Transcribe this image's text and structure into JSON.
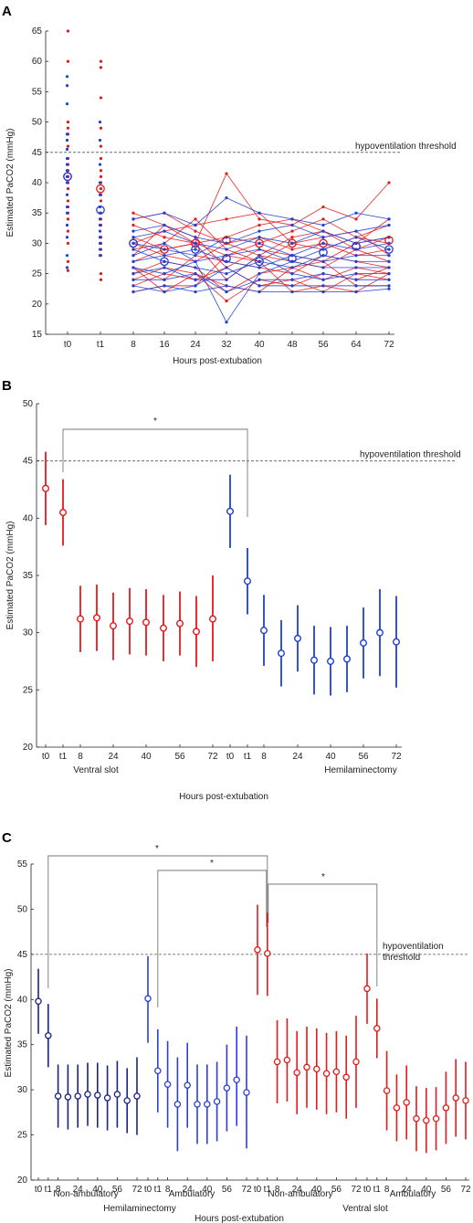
{
  "chart_data": [
    {
      "panel": "A",
      "type": "line",
      "ylabel": "Estimated PaCO2 (mmHg)",
      "xlabel": "Hours post-extubation",
      "ylim": [
        15,
        65
      ],
      "yticks": [
        15,
        20,
        25,
        30,
        35,
        40,
        45,
        50,
        55,
        60,
        65
      ],
      "categories": [
        "t0",
        "t1",
        "8",
        "16",
        "24",
        "32",
        "40",
        "48",
        "56",
        "64",
        "72"
      ],
      "threshold": {
        "value": 45,
        "label": "hypoventilation threshold"
      },
      "colors": {
        "red": "#e31a1c",
        "blue": "#1f3fd6"
      },
      "scatter": {
        "t0_red": [
          65,
          60,
          50,
          49,
          48,
          46,
          44,
          43,
          42,
          41,
          40,
          39,
          37,
          36,
          35,
          34,
          32,
          30,
          27,
          25.5
        ],
        "t0_blue": [
          57.5,
          56,
          53,
          48,
          47,
          45.5,
          44,
          43,
          42,
          41,
          40,
          38,
          36,
          35,
          33,
          31,
          28,
          26
        ],
        "t1_red": [
          60,
          59,
          54,
          49,
          46,
          44,
          42,
          41,
          40,
          39,
          38,
          37,
          35,
          34,
          33,
          31,
          30,
          29,
          28,
          25,
          24
        ],
        "t1_blue": [
          50,
          47,
          43,
          40,
          38,
          36,
          35,
          34,
          33,
          32,
          31,
          30,
          29,
          28
        ]
      },
      "lines_red": [
        [
          42,
          39,
          35,
          33,
          30,
          41.5,
          34,
          33,
          36,
          34,
          40
        ],
        [
          38,
          37,
          34,
          35,
          32,
          30,
          28,
          31,
          32,
          30,
          34
        ],
        [
          36,
          34,
          33,
          31,
          30,
          28,
          30,
          32,
          34,
          31,
          33
        ],
        [
          34,
          31,
          30,
          32,
          33,
          34,
          35,
          30,
          29,
          31,
          30
        ],
        [
          32,
          30,
          31,
          29,
          30,
          31,
          33,
          34,
          32,
          29,
          31
        ],
        [
          31,
          28,
          29,
          30,
          34,
          29,
          27,
          30,
          31,
          32,
          28
        ],
        [
          30,
          27,
          28,
          33,
          31,
          26,
          29,
          28,
          27,
          30,
          31
        ],
        [
          29,
          32,
          30,
          28,
          27,
          30,
          31,
          29,
          30,
          28,
          29
        ],
        [
          28,
          26,
          27,
          29,
          30,
          24,
          28,
          27,
          26,
          29,
          27
        ],
        [
          27,
          25,
          26,
          24,
          28,
          27,
          26,
          25,
          28,
          27,
          26
        ],
        [
          26,
          24,
          25,
          27,
          26,
          22,
          25,
          26,
          24,
          26,
          25
        ],
        [
          25,
          23,
          24,
          26,
          25,
          20.5,
          24,
          23,
          25,
          24,
          26
        ],
        [
          24,
          22,
          23,
          25,
          24,
          26,
          23,
          24,
          22,
          25,
          24
        ],
        [
          23,
          25,
          22,
          23,
          23,
          28,
          27,
          22,
          23,
          22,
          25
        ],
        [
          22.5,
          24,
          26,
          22,
          25,
          23,
          22,
          26,
          27,
          23,
          23
        ]
      ],
      "lines_blue": [
        [
          41,
          36,
          34,
          35,
          33,
          37.5,
          35,
          34,
          33,
          35,
          34
        ],
        [
          37,
          35,
          32,
          33,
          31,
          30,
          32,
          33,
          31,
          32,
          33
        ],
        [
          35,
          33,
          31,
          32,
          30,
          29,
          31,
          30,
          32,
          30,
          31
        ],
        [
          33,
          32,
          30,
          29,
          28,
          31,
          30,
          28,
          30,
          29,
          30
        ],
        [
          32,
          29,
          28,
          30,
          27,
          28,
          29,
          27,
          29,
          31,
          29
        ],
        [
          30,
          28,
          27,
          28,
          29,
          27,
          26,
          28,
          27,
          28,
          28
        ],
        [
          29,
          26,
          29,
          27,
          26,
          25,
          27,
          26,
          28,
          27,
          27
        ],
        [
          28,
          27,
          26,
          25,
          27,
          17,
          25,
          27,
          26,
          26,
          26
        ],
        [
          27,
          24,
          25,
          26,
          24,
          24,
          28,
          25,
          24,
          25,
          25
        ],
        [
          26,
          25,
          24,
          24,
          25,
          22,
          24,
          24,
          25,
          24,
          24
        ],
        [
          25,
          23,
          23,
          22,
          23,
          26,
          23,
          23,
          23,
          23,
          23
        ],
        [
          24,
          22,
          22,
          23,
          22,
          23,
          22,
          22,
          22,
          22,
          22.5
        ]
      ],
      "means_red": [
        41,
        39,
        30,
        29,
        30,
        30.5,
        30,
        30,
        30,
        29.5,
        30.5
      ],
      "means_blue": [
        41,
        35.5,
        30,
        27,
        29,
        27.5,
        27,
        27.5,
        28.5,
        29.5,
        29
      ]
    },
    {
      "panel": "B",
      "type": "errorbar",
      "ylabel": "Estimated PaCO2 (mmHg)",
      "xlabel": "Hours post-extubation",
      "ylim": [
        20,
        50
      ],
      "yticks": [
        20,
        25,
        30,
        35,
        40,
        45,
        50
      ],
      "threshold": {
        "value": 45,
        "label": "hypoventilation threshold"
      },
      "significance": "*",
      "xtick_labels": [
        "t0",
        "t1",
        "8",
        "24",
        "40",
        "56",
        "72",
        "t0",
        "t1",
        "8",
        "24",
        "40",
        "56",
        "72"
      ],
      "groups": [
        {
          "name": "Ventral slot",
          "color": "#e31a1c",
          "mean": [
            42.6,
            40.5,
            31.2,
            31.3,
            30.6,
            31.0,
            30.9,
            30.4,
            30.8,
            30.1,
            31.2
          ],
          "lo": [
            39.4,
            37.6,
            28.3,
            28.4,
            27.6,
            28.1,
            28.0,
            27.5,
            28.0,
            27.0,
            27.5
          ],
          "hi": [
            45.8,
            43.4,
            34.1,
            34.2,
            33.5,
            33.9,
            33.8,
            33.3,
            33.6,
            33.2,
            35.0
          ]
        },
        {
          "name": "Hemilaminectomy",
          "color": "#1f3fd6",
          "mean": [
            40.6,
            34.5,
            30.2,
            28.2,
            29.5,
            27.6,
            27.5,
            27.7,
            29.1,
            30.0,
            29.2
          ],
          "lo": [
            37.4,
            31.6,
            27.1,
            25.3,
            26.6,
            24.6,
            24.5,
            24.8,
            26.0,
            26.2,
            25.2
          ],
          "hi": [
            43.8,
            37.4,
            33.3,
            31.1,
            32.4,
            30.6,
            30.5,
            30.6,
            32.2,
            33.8,
            33.2
          ]
        }
      ]
    },
    {
      "panel": "C",
      "type": "errorbar",
      "ylabel": "Estimated PaCO2 (mmHg)",
      "xlabel": "Hours post-extubation",
      "ylim": [
        20,
        55
      ],
      "yticks": [
        20,
        25,
        30,
        35,
        40,
        45,
        50,
        55
      ],
      "threshold": {
        "value": 45,
        "label": "hypoventilation threshold"
      },
      "significance": "*",
      "xtick_labels": [
        "t0",
        "t1",
        "8",
        "24",
        "40",
        "56",
        "72",
        "t0",
        "t1",
        "8",
        "24",
        "40",
        "56",
        "72",
        "t0",
        "t1",
        "8",
        "24",
        "40",
        "56",
        "72",
        "t0",
        "t1",
        "8",
        "24",
        "40",
        "56",
        "72"
      ],
      "subgroup_labels": [
        "Non-ambulatory",
        "Ambulatory",
        "Non-ambulatory",
        "Ambulatory"
      ],
      "group_labels": [
        "Hemilaminectomy",
        "Ventral slot"
      ],
      "groups": [
        {
          "name": "Non-ambulatory",
          "color": "#1a237e",
          "mean": [
            39.8,
            36.0,
            29.3,
            29.2,
            29.3,
            29.5,
            29.4,
            29.1,
            29.5,
            28.8,
            29.3
          ],
          "lo": [
            36.2,
            32.5,
            25.8,
            25.6,
            25.8,
            26.0,
            25.8,
            25.5,
            25.8,
            25.2,
            25.0
          ],
          "hi": [
            43.4,
            39.5,
            32.8,
            32.8,
            32.8,
            33.0,
            33.0,
            32.7,
            33.2,
            32.4,
            33.6
          ]
        },
        {
          "name": "Ambulatory",
          "color": "#2b3fd6",
          "mean": [
            40.1,
            32.1,
            30.6,
            28.4,
            30.5,
            28.4,
            28.4,
            28.7,
            30.2,
            31.1,
            29.7
          ],
          "lo": [
            35.2,
            27.5,
            25.8,
            23.2,
            25.8,
            24.0,
            24.0,
            24.3,
            25.4,
            26.0,
            23.5
          ],
          "hi": [
            44.8,
            36.7,
            35.4,
            33.6,
            35.2,
            32.8,
            32.8,
            33.1,
            35.0,
            37.0,
            36.0
          ]
        },
        {
          "name": "Non-ambulatory",
          "color": "#e31a1c",
          "mean": [
            45.5,
            45.1,
            33.1,
            33.3,
            31.9,
            32.5,
            32.3,
            31.8,
            32.0,
            31.4,
            33.1
          ],
          "lo": [
            40.5,
            40.4,
            28.5,
            28.7,
            27.3,
            28.0,
            27.8,
            27.3,
            27.5,
            26.8,
            28.0
          ],
          "hi": [
            50.5,
            49.6,
            37.7,
            37.9,
            36.5,
            37.0,
            36.8,
            36.3,
            36.5,
            36.0,
            38.2
          ]
        },
        {
          "name": "Ambulatory",
          "color": "#e31a1c",
          "mean": [
            41.2,
            36.8,
            29.9,
            28.0,
            28.6,
            26.8,
            26.6,
            26.8,
            28.0,
            29.1,
            28.8
          ],
          "lo": [
            37.3,
            33.5,
            25.5,
            24.3,
            24.5,
            23.2,
            23.0,
            23.3,
            24.0,
            24.8,
            24.5
          ],
          "hi": [
            45.1,
            40.1,
            34.3,
            31.7,
            32.7,
            30.4,
            30.2,
            30.3,
            32.0,
            33.4,
            33.1
          ]
        }
      ]
    }
  ]
}
